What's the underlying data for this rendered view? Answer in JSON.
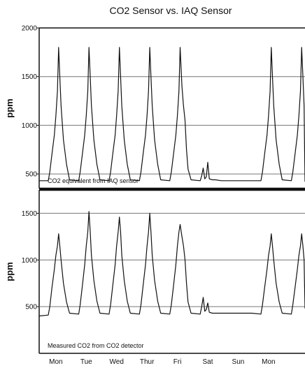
{
  "chart_data": {
    "type": "line",
    "title": "CO2 Sensor vs. IAQ Sensor",
    "x_tick_labels": [
      "Mon",
      "Tue",
      "Wed",
      "Thur",
      "Fri",
      "Sat",
      "Sun",
      "Mon"
    ],
    "x_range_days": [
      0,
      8.75
    ],
    "grid": "horizontal",
    "panels": [
      {
        "annotation": "CO2 equivalent from IAQ sensor",
        "ylabel": "ppm",
        "ylim": [
          350,
          2000
        ],
        "y_ticks": [
          500,
          1000,
          1500,
          2000
        ],
        "series": [
          {
            "x": [
              0,
              0.3,
              0.35,
              0.42,
              0.5,
              0.55,
              0.6,
              0.64,
              0.68,
              0.72,
              0.8,
              0.9,
              1.0,
              1.3,
              1.35,
              1.42,
              1.5,
              1.55,
              1.6,
              1.64,
              1.68,
              1.72,
              1.8,
              1.9,
              2.0,
              2.3,
              2.35,
              2.42,
              2.5,
              2.55,
              2.6,
              2.64,
              2.68,
              2.72,
              2.8,
              2.9,
              3.0,
              3.3,
              3.35,
              3.42,
              3.5,
              3.55,
              3.6,
              3.64,
              3.68,
              3.72,
              3.8,
              3.9,
              4.0,
              4.3,
              4.35,
              4.42,
              4.5,
              4.55,
              4.6,
              4.64,
              4.7,
              4.75,
              4.8,
              4.85,
              4.9,
              5.0,
              5.3,
              5.35,
              5.4,
              5.45,
              5.5,
              5.55,
              5.6,
              5.7,
              5.8,
              6.0,
              6.5,
              7.0,
              7.3,
              7.35,
              7.42,
              7.5,
              7.55,
              7.6,
              7.64,
              7.68,
              7.72,
              7.8,
              7.9,
              8.0,
              8.3,
              8.35,
              8.42,
              8.5,
              8.55,
              8.6,
              8.64,
              8.68,
              8.72,
              8.75
            ],
            "y": [
              430,
              430,
              520,
              700,
              900,
              1100,
              1350,
              1800,
              1500,
              1200,
              850,
              600,
              440,
              430,
              520,
              700,
              900,
              1100,
              1350,
              1800,
              1500,
              1200,
              850,
              600,
              440,
              430,
              520,
              700,
              900,
              1100,
              1350,
              1800,
              1500,
              1200,
              850,
              600,
              440,
              430,
              520,
              700,
              900,
              1100,
              1350,
              1800,
              1500,
              1200,
              850,
              600,
              440,
              430,
              520,
              700,
              900,
              1100,
              1350,
              1800,
              1400,
              1200,
              1050,
              750,
              550,
              440,
              430,
              480,
              560,
              450,
              470,
              620,
              450,
              440,
              440,
              430,
              430,
              430,
              430,
              520,
              700,
              900,
              1100,
              1350,
              1800,
              1500,
              1200,
              850,
              600,
              440,
              430,
              520,
              700,
              900,
              1100,
              1350,
              1800,
              1500,
              1200,
              420
            ]
          }
        ]
      },
      {
        "annotation": "Measured CO2 from CO2 detector",
        "ylabel": "ppm",
        "ylim": [
          0,
          1750
        ],
        "y_ticks": [
          500,
          1000,
          1500
        ],
        "series": [
          {
            "x": [
              0,
              0.3,
              0.35,
              0.42,
              0.5,
              0.55,
              0.6,
              0.64,
              0.68,
              0.72,
              0.8,
              0.9,
              1.0,
              1.3,
              1.35,
              1.42,
              1.5,
              1.55,
              1.6,
              1.64,
              1.68,
              1.72,
              1.8,
              1.9,
              2.0,
              2.3,
              2.35,
              2.42,
              2.5,
              2.55,
              2.6,
              2.64,
              2.68,
              2.72,
              2.8,
              2.9,
              3.0,
              3.3,
              3.35,
              3.42,
              3.5,
              3.55,
              3.6,
              3.64,
              3.68,
              3.72,
              3.8,
              3.9,
              4.0,
              4.3,
              4.35,
              4.42,
              4.5,
              4.55,
              4.6,
              4.64,
              4.7,
              4.75,
              4.8,
              4.85,
              4.9,
              5.0,
              5.3,
              5.35,
              5.4,
              5.45,
              5.5,
              5.55,
              5.6,
              5.7,
              5.8,
              6.0,
              6.5,
              7.0,
              7.3,
              7.35,
              7.42,
              7.5,
              7.55,
              7.6,
              7.64,
              7.68,
              7.72,
              7.8,
              7.9,
              8.0,
              8.3,
              8.35,
              8.42,
              8.5,
              8.55,
              8.6,
              8.64,
              8.68,
              8.72,
              8.75
            ],
            "y": [
              400,
              410,
              500,
              700,
              900,
              1050,
              1150,
              1280,
              1150,
              1000,
              750,
              550,
              430,
              420,
              520,
              720,
              950,
              1150,
              1300,
              1520,
              1300,
              1050,
              780,
              560,
              430,
              420,
              520,
              720,
              950,
              1150,
              1300,
              1460,
              1300,
              1050,
              780,
              560,
              430,
              420,
              520,
              720,
              950,
              1150,
              1300,
              1500,
              1300,
              1050,
              780,
              560,
              430,
              420,
              520,
              720,
              950,
              1150,
              1300,
              1380,
              1250,
              1150,
              1000,
              750,
              550,
              430,
              420,
              500,
              600,
              450,
              470,
              540,
              440,
              430,
              430,
              430,
              430,
              430,
              420,
              520,
              700,
              900,
              1050,
              1150,
              1280,
              1150,
              1000,
              750,
              550,
              430,
              420,
              520,
              700,
              900,
              1050,
              1150,
              1280,
              1150,
              1000,
              480
            ]
          }
        ]
      }
    ]
  }
}
